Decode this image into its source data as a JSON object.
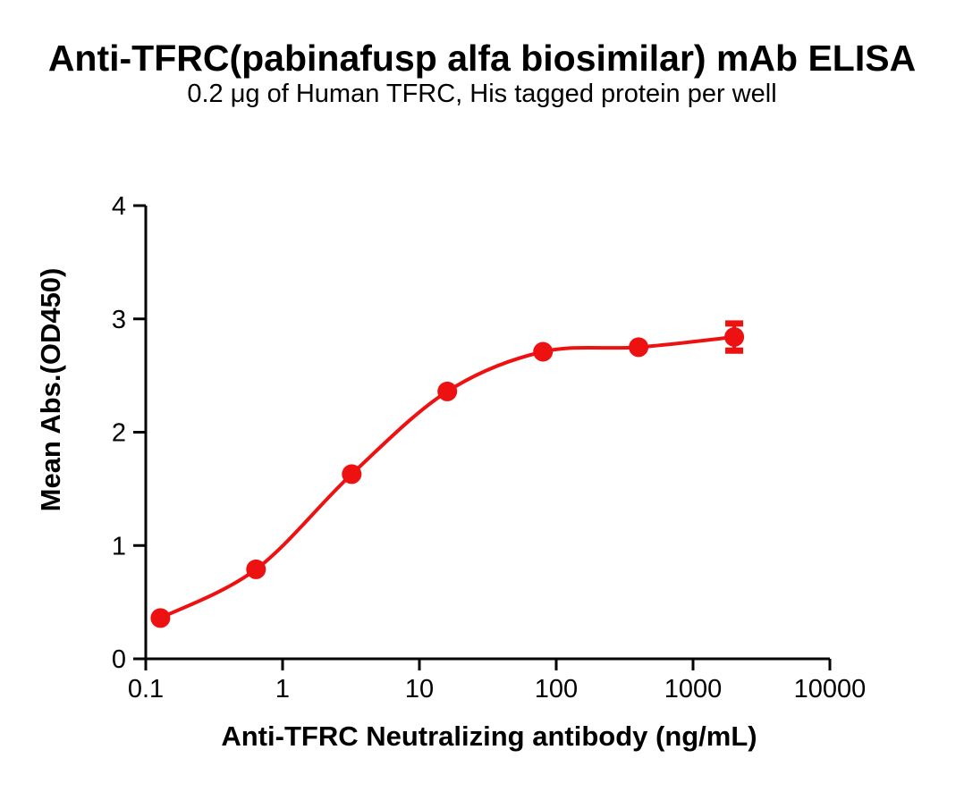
{
  "header": {
    "title": "Anti-TFRC(pabinafusp alfa biosimilar) mAb ELISA",
    "subtitle": "0.2 μg of Human TFRC, His tagged protein per well"
  },
  "chart_data": {
    "type": "scatter",
    "curve": "sigmoidal-fit",
    "x": [
      0.128,
      0.64,
      3.2,
      16,
      80,
      400,
      2000
    ],
    "y": [
      0.36,
      0.79,
      1.63,
      2.36,
      2.71,
      2.75,
      2.84
    ],
    "y_err": [
      0,
      0,
      0,
      0,
      0,
      0,
      0.12
    ],
    "title": "Anti-TFRC(pabinafusp alfa biosimilar) mAb ELISA",
    "subtitle": "0.2 μg of Human TFRC, His tagged protein per well",
    "xlabel": "Anti-TFRC Neutralizing antibody (ng/mL)",
    "ylabel": "Mean Abs.(OD450)",
    "x_scale": "log10",
    "xlim": [
      0.1,
      10000
    ],
    "ylim": [
      0,
      4
    ],
    "x_ticks": [
      0.1,
      1,
      10,
      100,
      1000,
      10000
    ],
    "x_tick_labels": [
      "0.1",
      "1",
      "10",
      "100",
      "1000",
      "10000"
    ],
    "y_ticks": [
      0,
      1,
      2,
      3,
      4
    ],
    "y_tick_labels": [
      "0",
      "1",
      "2",
      "3",
      "4"
    ],
    "grid": false,
    "legend": null,
    "colors": {
      "series": "#ee1111",
      "axis": "#000000",
      "text": "#000000",
      "background": "#ffffff"
    },
    "marker": "filled-circle"
  }
}
